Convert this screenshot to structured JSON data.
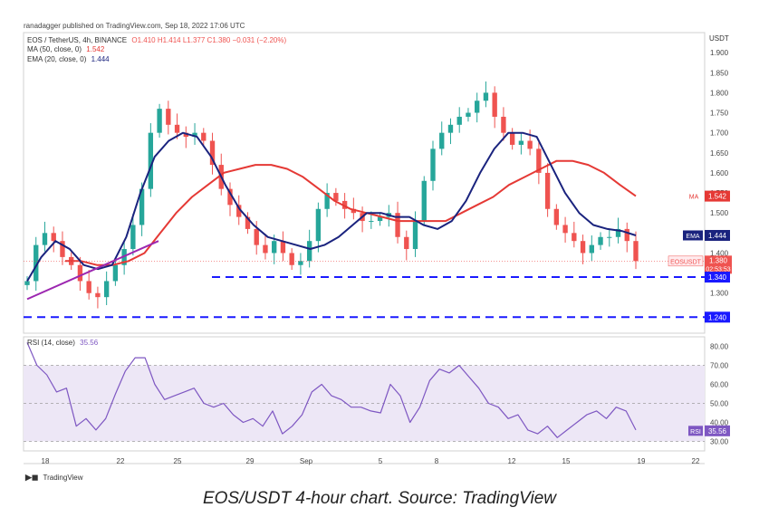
{
  "header": {
    "publisher_line": "ranadagger published on TradingView.com, Sep 18, 2022 17:06 UTC",
    "symbol_line": "EOS / TetherUS, 4h, BINANCE",
    "ohlc": "O1.410 H1.414 L1.377 C1.380 −0.031 (−2.20%)",
    "ma_label": "MA (50, close, 0)",
    "ma_value": "1.542",
    "ema_label": "EMA (20, close, 0)",
    "ema_value": "1.444",
    "currency": "USDT"
  },
  "rsi_header": {
    "label": "RSI (14, close)",
    "value": "35.56"
  },
  "footer": {
    "logo_text": "TradingView"
  },
  "caption": "EOS/USDT 4-hour chart. Source: TradingView",
  "colors": {
    "up": "#26a69a",
    "down": "#ef5350",
    "ma": "#e53935",
    "ema": "#1a237e",
    "trendline": "#9c27b0",
    "support": "#1a1aff",
    "rsi": "#7e57c2",
    "rsi_band": "#ede7f6"
  },
  "chart_data": {
    "type": "candlestick",
    "title": "EOS / TetherUS, 4h, BINANCE",
    "ylim": [
      1.2,
      1.95
    ],
    "y_ticks": [
      1.3,
      1.4,
      1.5,
      1.55,
      1.6,
      1.65,
      1.7,
      1.75,
      1.8,
      1.85,
      1.9
    ],
    "x_ticks": [
      "18",
      "22",
      "25",
      "29",
      "Sep",
      "5",
      "8",
      "12",
      "15",
      "19",
      "22"
    ],
    "markers": [
      {
        "label": "MA",
        "value": "1.542",
        "y": 1.542
      },
      {
        "label": "EMA",
        "value": "1.444",
        "y": 1.444
      },
      {
        "label": "EOSUSDT",
        "value": "1.380",
        "sub": "02:53:53",
        "y": 1.38
      },
      {
        "label": "",
        "value": "1.340",
        "y": 1.34
      },
      {
        "label": "",
        "value": "1.240",
        "y": 1.24
      }
    ],
    "support_levels": [
      1.34,
      1.24
    ],
    "trendline": {
      "from": {
        "date": "Aug 15",
        "y": 1.285
      },
      "to": {
        "date": "Aug 24",
        "y": 1.43
      }
    },
    "price_close": [
      1.33,
      1.42,
      1.45,
      1.43,
      1.39,
      1.37,
      1.33,
      1.3,
      1.29,
      1.33,
      1.37,
      1.41,
      1.47,
      1.56,
      1.7,
      1.76,
      1.72,
      1.7,
      1.69,
      1.7,
      1.68,
      1.62,
      1.56,
      1.52,
      1.49,
      1.46,
      1.42,
      1.4,
      1.43,
      1.4,
      1.37,
      1.38,
      1.43,
      1.51,
      1.55,
      1.53,
      1.51,
      1.5,
      1.48,
      1.48,
      1.49,
      1.5,
      1.44,
      1.41,
      1.48,
      1.58,
      1.66,
      1.7,
      1.72,
      1.74,
      1.75,
      1.78,
      1.8,
      1.74,
      1.7,
      1.67,
      1.68,
      1.66,
      1.6,
      1.51,
      1.47,
      1.45,
      1.43,
      1.4,
      1.42,
      1.44,
      1.44,
      1.46,
      1.43,
      1.38
    ],
    "ma50": [
      1.38,
      1.38,
      1.37,
      1.37,
      1.38,
      1.4,
      1.45,
      1.5,
      1.54,
      1.57,
      1.6,
      1.61,
      1.62,
      1.62,
      1.61,
      1.59,
      1.56,
      1.53,
      1.51,
      1.5,
      1.49,
      1.48,
      1.48,
      1.48,
      1.48,
      1.5,
      1.52,
      1.54,
      1.57,
      1.59,
      1.61,
      1.63,
      1.63,
      1.62,
      1.6,
      1.57,
      1.542
    ],
    "ema20": [
      1.33,
      1.39,
      1.43,
      1.41,
      1.37,
      1.36,
      1.37,
      1.44,
      1.55,
      1.64,
      1.68,
      1.7,
      1.69,
      1.64,
      1.57,
      1.51,
      1.47,
      1.44,
      1.43,
      1.42,
      1.41,
      1.42,
      1.44,
      1.47,
      1.5,
      1.5,
      1.49,
      1.49,
      1.47,
      1.46,
      1.48,
      1.53,
      1.6,
      1.66,
      1.7,
      1.7,
      1.69,
      1.62,
      1.55,
      1.5,
      1.47,
      1.46,
      1.455,
      1.444
    ],
    "rsi": {
      "ylim": [
        25,
        85
      ],
      "y_ticks": [
        30,
        40,
        50,
        60,
        70,
        80
      ],
      "overbought": 70,
      "oversold": 30,
      "values": [
        82,
        70,
        65,
        56,
        58,
        38,
        42,
        36,
        42,
        55,
        67,
        74,
        74,
        60,
        52,
        54,
        56,
        58,
        50,
        48,
        50,
        44,
        40,
        42,
        38,
        46,
        34,
        38,
        44,
        56,
        60,
        54,
        52,
        48,
        48,
        46,
        45,
        60,
        54,
        40,
        48,
        62,
        68,
        66,
        70,
        64,
        58,
        50,
        48,
        42,
        44,
        36,
        34,
        38,
        32,
        36,
        40,
        44,
        46,
        42,
        48,
        46,
        36
      ]
    }
  }
}
